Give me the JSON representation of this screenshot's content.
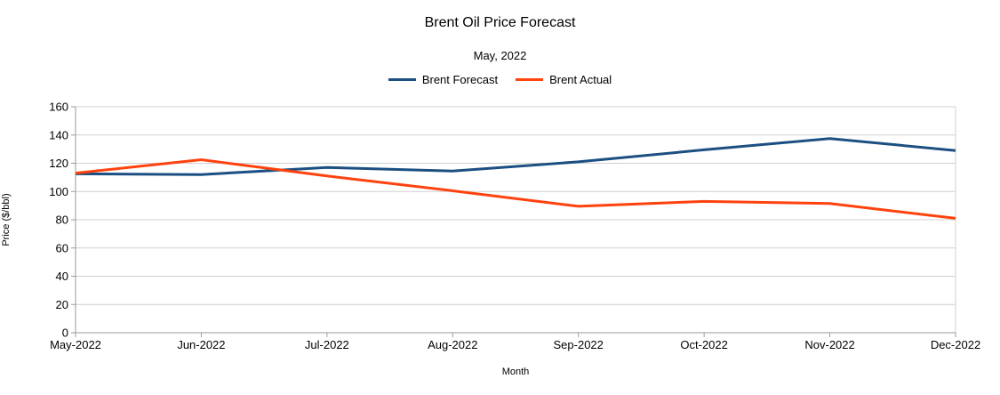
{
  "chart": {
    "title": "Brent Oil Price Forecast",
    "subtitle": "May, 2022",
    "x_axis_label": "Month",
    "y_axis_label": "Price ($/bbl)"
  },
  "chart_data": {
    "type": "line",
    "title": "Brent Oil Price Forecast",
    "subtitle": "May, 2022",
    "xlabel": "Month",
    "ylabel": "Price ($/bbl)",
    "categories": [
      "May-2022",
      "Jun-2022",
      "Jul-2022",
      "Aug-2022",
      "Sep-2022",
      "Oct-2022",
      "Nov-2022",
      "Dec-2022"
    ],
    "series": [
      {
        "name": "Brent Forecast",
        "color": "#1B4F82",
        "values": [
          112.5,
          112,
          117,
          114.5,
          121,
          129.5,
          137.5,
          129
        ]
      },
      {
        "name": "Brent Actual",
        "color": "#FF420E",
        "values": [
          113,
          122.5,
          111,
          100.5,
          89.5,
          93,
          91.5,
          81
        ]
      }
    ],
    "ylim": [
      0,
      160
    ],
    "y_ticks": [
      0,
      20,
      40,
      60,
      80,
      100,
      120,
      140,
      160
    ],
    "grid": "horizontal",
    "legend_position": "top"
  },
  "colors": {
    "gridline": "#d0d0d0",
    "axis": "#9a9a9a",
    "text": "#000000"
  }
}
